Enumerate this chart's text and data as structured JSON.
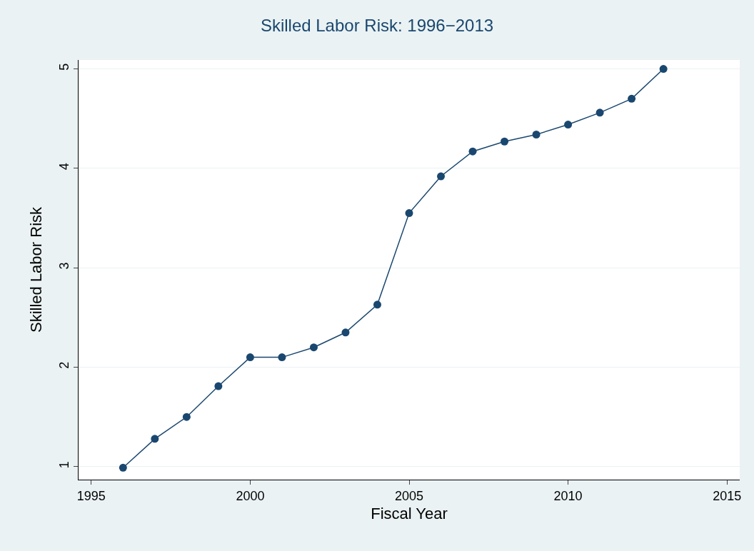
{
  "chart_data": {
    "type": "line",
    "title": "Skilled Labor Risk: 1996−2013",
    "xlabel": "Fiscal Year",
    "ylabel": "Skilled Labor Risk",
    "x": [
      1996,
      1997,
      1998,
      1999,
      2000,
      2001,
      2002,
      2003,
      2004,
      2005,
      2006,
      2007,
      2008,
      2009,
      2010,
      2011,
      2012,
      2013
    ],
    "series": [
      {
        "color": "#1a476f",
        "values": [
          0.99,
          1.28,
          1.5,
          1.81,
          2.1,
          2.1,
          2.2,
          2.35,
          2.63,
          3.55,
          3.92,
          4.17,
          4.27,
          4.34,
          4.44,
          4.56,
          4.7,
          5.0
        ]
      }
    ],
    "xlim": [
      1994.6,
      2015.4
    ],
    "xticks": [
      1995,
      2000,
      2005,
      2010,
      2015
    ],
    "ylim": [
      0.87,
      5.09
    ],
    "yticks": [
      1,
      2,
      3,
      4,
      5
    ],
    "grid": "y",
    "marker": "circle",
    "line_style": "solid"
  }
}
